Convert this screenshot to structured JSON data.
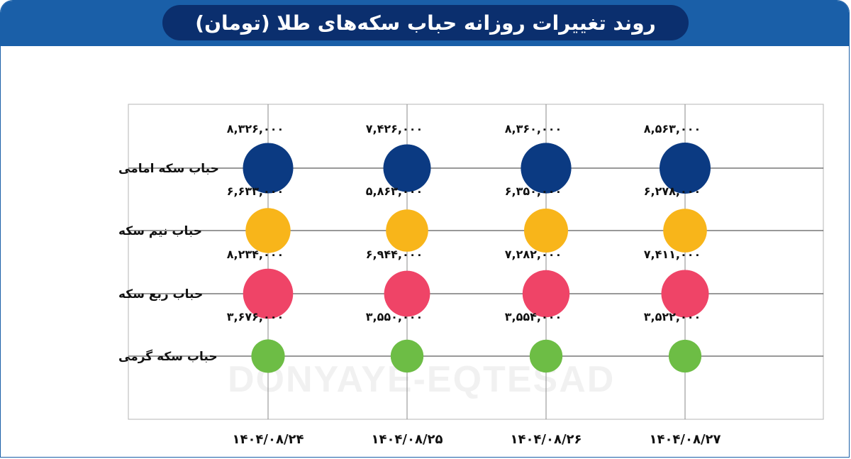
{
  "header": {
    "title": "روند تغییرات روزانه حباب سکه‌های طلا (تومان)"
  },
  "watermark": {
    "text": "DONYAYE-EQTESAD"
  },
  "colors": {
    "header_bg": "#1a5fa8",
    "title_bg": "#0b2f6e",
    "grid": "#333333"
  },
  "chart_data": {
    "type": "scatter",
    "categories": [
      "۱۴۰۴/۰۸/۲۴",
      "۱۴۰۴/۰۸/۲۵",
      "۱۴۰۴/۰۸/۲۶",
      "۱۴۰۴/۰۸/۲۷"
    ],
    "series": [
      {
        "name": "حباب سکه امامی",
        "color": "#0b3a82",
        "values": [
          8326000,
          7426000,
          8360000,
          8563000
        ],
        "labels": [
          "۸,۳۲۶,۰۰۰",
          "۷,۴۲۶,۰۰۰",
          "۸,۳۶۰,۰۰۰",
          "۸,۵۶۳,۰۰۰"
        ]
      },
      {
        "name": "حباب نیم سکه",
        "color": "#f8b51a",
        "values": [
          6633000,
          5863000,
          6350000,
          6278000
        ],
        "labels": [
          "۶,۶۳۳,۰۰۰",
          "۵,۸۶۳,۰۰۰",
          "۶,۳۵۰,۰۰۰",
          "۶,۲۷۸,۰۰۰"
        ]
      },
      {
        "name": "حباب ربع سکه",
        "color": "#ef4467",
        "values": [
          8234000,
          6944000,
          7282000,
          7411000
        ],
        "labels": [
          "۸,۲۳۴,۰۰۰",
          "۶,۹۴۴,۰۰۰",
          "۷,۲۸۲,۰۰۰",
          "۷,۴۱۱,۰۰۰"
        ]
      },
      {
        "name": "حباب سکه گرمی",
        "color": "#6dbd45",
        "values": [
          3676000,
          3550000,
          3554000,
          3522000
        ],
        "labels": [
          "۳,۶۷۶,۰۰۰",
          "۳,۵۵۰,۰۰۰",
          "۳,۵۵۴,۰۰۰",
          "۳,۵۲۲,۰۰۰"
        ]
      }
    ],
    "encoding": "bubble size proportional to value",
    "grid": true
  }
}
